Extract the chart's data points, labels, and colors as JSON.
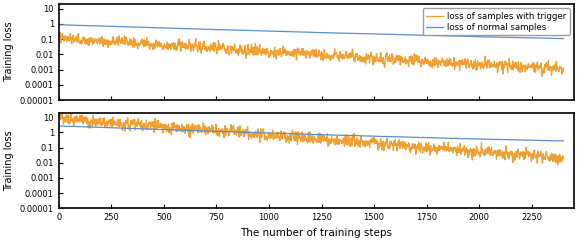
{
  "xlabel": "The number of training steps",
  "ylabel": "Training loss",
  "xlim": [
    0,
    2450
  ],
  "ylim_log": [
    1e-05,
    20
  ],
  "x_ticks": [
    0,
    250,
    500,
    750,
    1000,
    1250,
    1500,
    1750,
    2000,
    2250
  ],
  "y_ticks": [
    1e-05,
    0.0001,
    0.001,
    0.01,
    0.1,
    1,
    10
  ],
  "y_tick_labels": [
    "0.00001",
    "0.0001",
    "0.001",
    "0.01",
    "0.1",
    "1",
    "10"
  ],
  "legend_labels": [
    "loss of normal samples",
    "loss of samples with trigger"
  ],
  "blue_color": "#5b8fcc",
  "orange_color": "#f0a030",
  "n_points": 2400,
  "background_color": "#ffffff",
  "figsize": [
    5.78,
    2.42
  ],
  "dpi": 100
}
